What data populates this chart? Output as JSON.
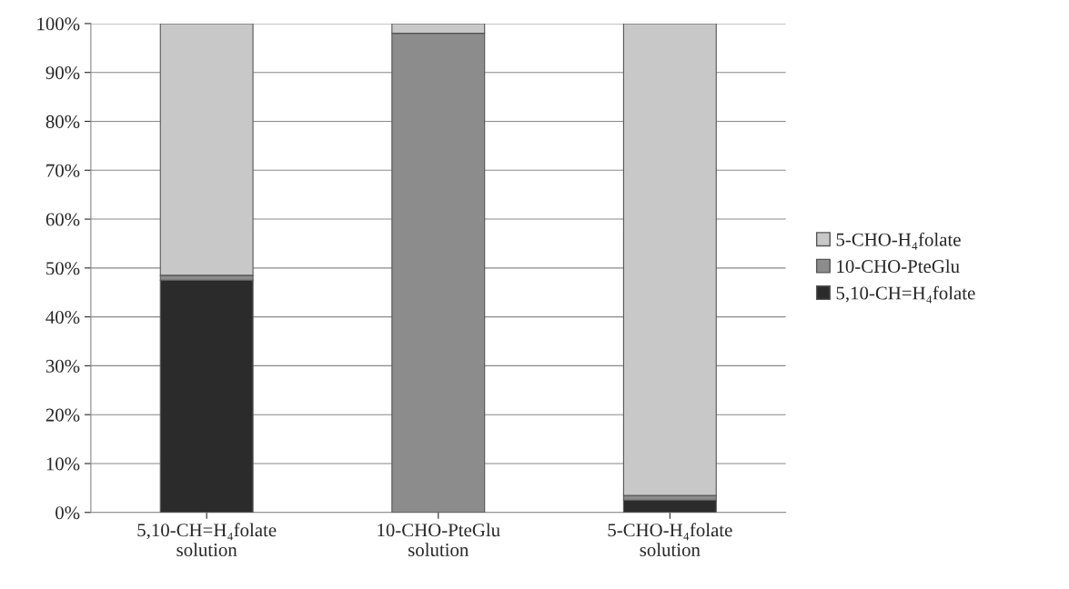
{
  "chart_data": {
    "type": "bar",
    "stacked": true,
    "categories": [
      "5,10-CH=H₄folate\nsolution",
      "10-CHO-PteGlu\nsolution",
      "5-CHO-H₄folate\nsolution"
    ],
    "series": [
      {
        "name": "5,10-CH=H₄folate",
        "color": "#2b2b2b",
        "values": [
          47.5,
          0,
          2.5
        ]
      },
      {
        "name": "10-CHO-PteGlu",
        "color": "#8c8c8c",
        "values": [
          1,
          98,
          1
        ]
      },
      {
        "name": "5-CHO-H₄folate",
        "color": "#c8c8c8",
        "values": [
          51.5,
          2,
          96.5
        ]
      }
    ],
    "ylim": [
      0,
      100
    ],
    "yticks": [
      {
        "value": 0,
        "label": "0%"
      },
      {
        "value": 10,
        "label": "10%"
      },
      {
        "value": 20,
        "label": "20%"
      },
      {
        "value": 30,
        "label": "30%"
      },
      {
        "value": 40,
        "label": "40%"
      },
      {
        "value": 50,
        "label": "50%"
      },
      {
        "value": 60,
        "label": "60%"
      },
      {
        "value": 70,
        "label": "70%"
      },
      {
        "value": 80,
        "label": "80%"
      },
      {
        "value": 90,
        "label": "90%"
      },
      {
        "value": 100,
        "label": "100%"
      }
    ],
    "grid": "y",
    "legend": "right"
  }
}
